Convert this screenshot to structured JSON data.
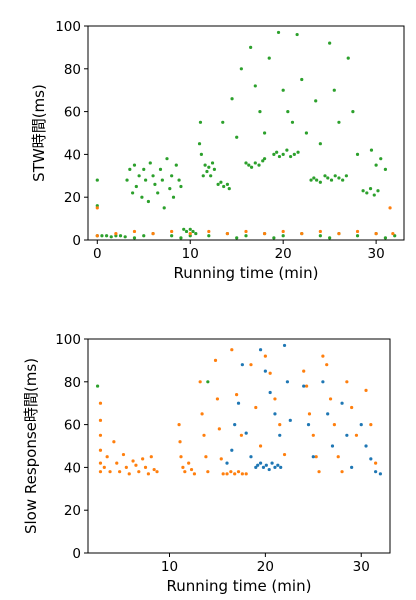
{
  "colors": {
    "green": "#2ca02c",
    "orange": "#ff7f0e",
    "blue": "#1f77b4"
  },
  "chart_data": [
    {
      "type": "scatter",
      "xlabel": "Running time (min)",
      "ylabel": "STW時間(ms)",
      "xlim": [
        -1,
        33
      ],
      "ylim": [
        0,
        100
      ],
      "xticks": [
        0,
        10,
        20,
        30
      ],
      "yticks": [
        0,
        20,
        40,
        60,
        80,
        100
      ],
      "grid": false,
      "series": [
        {
          "color": "green",
          "points": [
            [
              0,
              16
            ],
            [
              0,
              28
            ],
            [
              0,
              2
            ],
            [
              0.5,
              2
            ],
            [
              1,
              2
            ],
            [
              1.5,
              1.5
            ],
            [
              2,
              2
            ],
            [
              2.5,
              2
            ],
            [
              3,
              1.5
            ],
            [
              3.2,
              28
            ],
            [
              3.5,
              33
            ],
            [
              3.8,
              22
            ],
            [
              4,
              35
            ],
            [
              4.2,
              25
            ],
            [
              4.5,
              30
            ],
            [
              4.8,
              20
            ],
            [
              5,
              33
            ],
            [
              5.2,
              28
            ],
            [
              5.5,
              18
            ],
            [
              5.7,
              36
            ],
            [
              6,
              30
            ],
            [
              6.2,
              26
            ],
            [
              6.5,
              22
            ],
            [
              6.8,
              33
            ],
            [
              7,
              28
            ],
            [
              7.2,
              15
            ],
            [
              7.5,
              38
            ],
            [
              7.8,
              24
            ],
            [
              8,
              30
            ],
            [
              8.2,
              20
            ],
            [
              8.5,
              35
            ],
            [
              8.8,
              28
            ],
            [
              9,
              25
            ],
            [
              9.3,
              5
            ],
            [
              9.6,
              4
            ],
            [
              10,
              5
            ],
            [
              10.3,
              4
            ],
            [
              10.6,
              3
            ],
            [
              11,
              45
            ],
            [
              11.1,
              55
            ],
            [
              11.2,
              40
            ],
            [
              11.4,
              30
            ],
            [
              11.6,
              35
            ],
            [
              11.8,
              32
            ],
            [
              12,
              34
            ],
            [
              12.2,
              30
            ],
            [
              12.4,
              36
            ],
            [
              12.6,
              33
            ],
            [
              13,
              26
            ],
            [
              13.3,
              27
            ],
            [
              13.6,
              25
            ],
            [
              14,
              26
            ],
            [
              14.2,
              24
            ],
            [
              13.5,
              55
            ],
            [
              14.5,
              66
            ],
            [
              15,
              48
            ],
            [
              15.5,
              80
            ],
            [
              16,
              36
            ],
            [
              16.3,
              35
            ],
            [
              16.6,
              34
            ],
            [
              17,
              36
            ],
            [
              17.4,
              35
            ],
            [
              17.8,
              37
            ],
            [
              18,
              38
            ],
            [
              16.5,
              90
            ],
            [
              17,
              72
            ],
            [
              17.5,
              60
            ],
            [
              18,
              50
            ],
            [
              18.5,
              85
            ],
            [
              19,
              40
            ],
            [
              19.3,
              41
            ],
            [
              19.6,
              39
            ],
            [
              20,
              40
            ],
            [
              20.4,
              42
            ],
            [
              20.8,
              39
            ],
            [
              21.2,
              40
            ],
            [
              21.6,
              41
            ],
            [
              19.5,
              97
            ],
            [
              20,
              70
            ],
            [
              20.5,
              60
            ],
            [
              21,
              55
            ],
            [
              21.5,
              96
            ],
            [
              22,
              75
            ],
            [
              22.5,
              50
            ],
            [
              23,
              28
            ],
            [
              23.3,
              29
            ],
            [
              23.6,
              28
            ],
            [
              24,
              27
            ],
            [
              23.5,
              65
            ],
            [
              24,
              45
            ],
            [
              24.5,
              30
            ],
            [
              24.8,
              29
            ],
            [
              25.2,
              28
            ],
            [
              25.6,
              30
            ],
            [
              26,
              29
            ],
            [
              26.4,
              28
            ],
            [
              26.8,
              30
            ],
            [
              25,
              92
            ],
            [
              25.5,
              70
            ],
            [
              26,
              55
            ],
            [
              27,
              85
            ],
            [
              27.5,
              60
            ],
            [
              28,
              40
            ],
            [
              28.6,
              23
            ],
            [
              29,
              22
            ],
            [
              29.4,
              24
            ],
            [
              29.8,
              21
            ],
            [
              30.2,
              23
            ],
            [
              29.5,
              42
            ],
            [
              30,
              35
            ],
            [
              30.5,
              38
            ],
            [
              31,
              33
            ],
            [
              5,
              2
            ],
            [
              8,
              2
            ],
            [
              12,
              2
            ],
            [
              16,
              2
            ],
            [
              20,
              2
            ],
            [
              24,
              2
            ],
            [
              28,
              2
            ],
            [
              32,
              2
            ],
            [
              6,
              3
            ],
            [
              10,
              2
            ],
            [
              14,
              3
            ],
            [
              18,
              3
            ],
            [
              22,
              3
            ],
            [
              26,
              3
            ],
            [
              30,
              3
            ],
            [
              4,
              1
            ],
            [
              9,
              1
            ],
            [
              15,
              1
            ],
            [
              19,
              1
            ],
            [
              25,
              1
            ],
            [
              31,
              1
            ]
          ]
        },
        {
          "color": "orange",
          "points": [
            [
              0,
              15
            ],
            [
              0,
              2
            ],
            [
              2,
              3
            ],
            [
              4,
              4
            ],
            [
              6,
              3
            ],
            [
              8,
              4
            ],
            [
              10,
              3
            ],
            [
              12,
              4
            ],
            [
              14,
              3
            ],
            [
              16,
              4
            ],
            [
              18,
              3
            ],
            [
              20,
              4
            ],
            [
              22,
              3
            ],
            [
              24,
              4
            ],
            [
              26,
              3
            ],
            [
              28,
              4
            ],
            [
              30,
              3
            ],
            [
              31.5,
              15
            ],
            [
              31.8,
              3
            ]
          ]
        }
      ]
    },
    {
      "type": "scatter",
      "xlabel": "Running time (min)",
      "ylabel": "Slow Response時間(ms)",
      "xlim": [
        1.5,
        33
      ],
      "ylim": [
        0,
        100
      ],
      "xticks": [
        10,
        20,
        30
      ],
      "yticks": [
        0,
        20,
        40,
        60,
        80,
        100
      ],
      "grid": false,
      "series": [
        {
          "color": "green",
          "points": [
            [
              2.5,
              78
            ],
            [
              14,
              80
            ]
          ]
        },
        {
          "color": "orange",
          "points": [
            [
              2.8,
              70
            ],
            [
              2.8,
              62
            ],
            [
              2.8,
              55
            ],
            [
              2.8,
              48
            ],
            [
              2.8,
              42
            ],
            [
              2.8,
              38
            ],
            [
              3.2,
              40
            ],
            [
              3.5,
              45
            ],
            [
              3.8,
              38
            ],
            [
              4.2,
              52
            ],
            [
              4.5,
              42
            ],
            [
              4.8,
              38
            ],
            [
              5.2,
              46
            ],
            [
              5.5,
              40
            ],
            [
              5.8,
              37
            ],
            [
              6.2,
              43
            ],
            [
              6.5,
              41
            ],
            [
              6.8,
              38
            ],
            [
              7.2,
              44
            ],
            [
              7.5,
              40
            ],
            [
              7.8,
              37
            ],
            [
              8.1,
              45
            ],
            [
              8.4,
              39
            ],
            [
              8.7,
              38
            ],
            [
              11,
              60
            ],
            [
              11.1,
              52
            ],
            [
              11.2,
              45
            ],
            [
              11.4,
              40
            ],
            [
              11.6,
              38
            ],
            [
              12,
              42
            ],
            [
              12.3,
              39
            ],
            [
              12.6,
              37
            ],
            [
              13.2,
              80
            ],
            [
              13.4,
              65
            ],
            [
              13.6,
              55
            ],
            [
              13.8,
              45
            ],
            [
              14,
              38
            ],
            [
              14.8,
              90
            ],
            [
              15,
              72
            ],
            [
              15.2,
              58
            ],
            [
              15.4,
              44
            ],
            [
              15.6,
              37
            ],
            [
              16,
              37
            ],
            [
              16.4,
              38
            ],
            [
              16.8,
              37
            ],
            [
              17.2,
              38
            ],
            [
              17.6,
              37
            ],
            [
              18,
              37
            ],
            [
              16.5,
              95
            ],
            [
              17,
              74
            ],
            [
              17.5,
              55
            ],
            [
              18.5,
              88
            ],
            [
              19,
              68
            ],
            [
              19.5,
              50
            ],
            [
              20,
              92
            ],
            [
              20.5,
              84
            ],
            [
              21,
              72
            ],
            [
              21.5,
              60
            ],
            [
              22,
              46
            ],
            [
              24,
              85
            ],
            [
              24.3,
              78
            ],
            [
              24.6,
              65
            ],
            [
              25,
              55
            ],
            [
              25.3,
              45
            ],
            [
              25.6,
              38
            ],
            [
              26,
              92
            ],
            [
              26.4,
              88
            ],
            [
              26.8,
              72
            ],
            [
              27.2,
              60
            ],
            [
              27.6,
              45
            ],
            [
              28,
              38
            ],
            [
              28.5,
              80
            ],
            [
              29,
              68
            ],
            [
              29.5,
              55
            ],
            [
              30.5,
              76
            ],
            [
              31,
              60
            ],
            [
              31.5,
              42
            ]
          ]
        },
        {
          "color": "blue",
          "points": [
            [
              16,
              42
            ],
            [
              16.5,
              48
            ],
            [
              16.8,
              60
            ],
            [
              17.2,
              70
            ],
            [
              17.6,
              88
            ],
            [
              18,
              56
            ],
            [
              18.5,
              45
            ],
            [
              19,
              40
            ],
            [
              19.2,
              41
            ],
            [
              19.5,
              42
            ],
            [
              19.8,
              40
            ],
            [
              20.1,
              41
            ],
            [
              20.4,
              39
            ],
            [
              20.7,
              42
            ],
            [
              21,
              40
            ],
            [
              21.3,
              41
            ],
            [
              21.6,
              40
            ],
            [
              19.5,
              95
            ],
            [
              20,
              85
            ],
            [
              20.5,
              75
            ],
            [
              21,
              65
            ],
            [
              21.5,
              55
            ],
            [
              22,
              97
            ],
            [
              22.3,
              80
            ],
            [
              22.6,
              62
            ],
            [
              24,
              78
            ],
            [
              24.5,
              60
            ],
            [
              25,
              45
            ],
            [
              26,
              80
            ],
            [
              26.5,
              65
            ],
            [
              27,
              50
            ],
            [
              28,
              70
            ],
            [
              28.5,
              55
            ],
            [
              29,
              40
            ],
            [
              30,
              60
            ],
            [
              30.5,
              50
            ],
            [
              31,
              44
            ],
            [
              31.5,
              38
            ],
            [
              32,
              37
            ]
          ]
        }
      ]
    }
  ]
}
